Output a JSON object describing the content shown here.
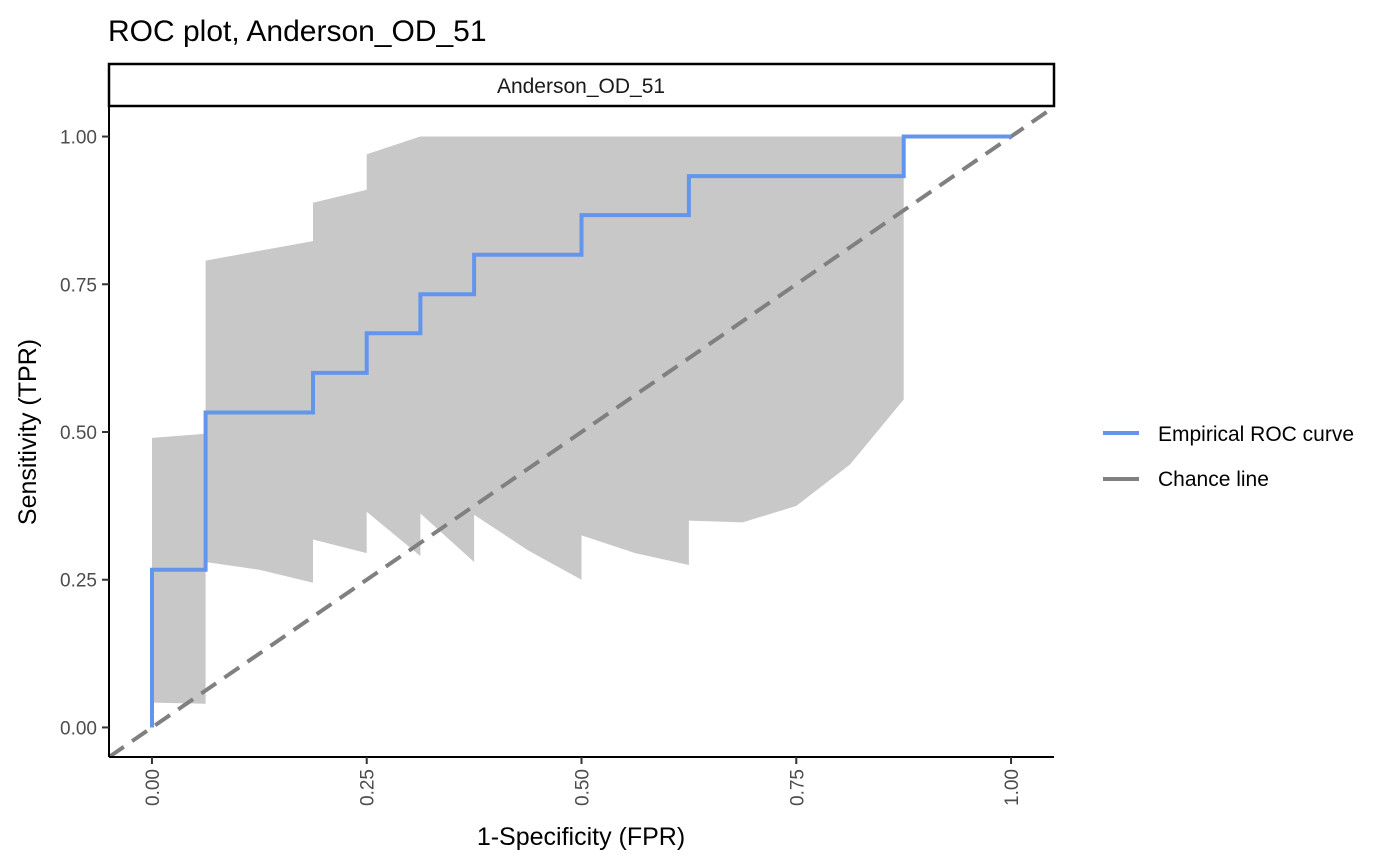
{
  "chart_data": {
    "type": "line",
    "title": "ROC plot, Anderson_OD_51",
    "panel_label": "Anderson_OD_51",
    "xlabel": "1-Specificity (FPR)",
    "ylabel": "Sensitivity (TPR)",
    "xlim": [
      -0.05,
      1.05
    ],
    "ylim": [
      -0.05,
      1.05
    ],
    "x_ticks": [
      0,
      0.25,
      0.5,
      0.75,
      1
    ],
    "x_tick_labels": [
      "0.00",
      "0.25",
      "0.50",
      "0.75",
      "1.00"
    ],
    "y_ticks": [
      0,
      0.25,
      0.5,
      0.75,
      1
    ],
    "y_tick_labels": [
      "0.00",
      "0.25",
      "0.50",
      "0.75",
      "1.00"
    ],
    "grid": false,
    "legend_position": "right",
    "colors": {
      "roc": "#6495ED",
      "chance": "#808080",
      "band": "#C8C8C8"
    },
    "series": [
      {
        "name": "Empirical ROC curve",
        "style": "step",
        "x": [
          0,
          0,
          0.0625,
          0.0625,
          0.1875,
          0.1875,
          0.25,
          0.25,
          0.3125,
          0.3125,
          0.375,
          0.375,
          0.5,
          0.5,
          0.625,
          0.625,
          0.875,
          0.875,
          1.0
        ],
        "y": [
          0,
          0.267,
          0.267,
          0.533,
          0.533,
          0.6,
          0.6,
          0.667,
          0.667,
          0.733,
          0.733,
          0.8,
          0.8,
          0.867,
          0.867,
          0.933,
          0.933,
          1.0,
          1.0
        ]
      },
      {
        "name": "Chance line",
        "style": "dashed",
        "x": [
          -0.05,
          1.05
        ],
        "y": [
          -0.05,
          1.05
        ]
      }
    ],
    "confidence_band": {
      "upper": {
        "x": [
          0,
          0.0625,
          0.0625,
          0.1875,
          0.1875,
          0.25,
          0.25,
          0.3125,
          0.875
        ],
        "y": [
          0.49,
          0.497,
          0.79,
          0.823,
          0.888,
          0.91,
          0.97,
          1.0,
          1.0
        ]
      },
      "lower": {
        "x": [
          0,
          0.0625,
          0.0625,
          0.125,
          0.1875,
          0.1875,
          0.25,
          0.25,
          0.3125,
          0.3125,
          0.375,
          0.375,
          0.4375,
          0.5,
          0.5,
          0.5625,
          0.625,
          0.625,
          0.6875,
          0.75,
          0.8125,
          0.875
        ],
        "y": [
          0.042,
          0.04,
          0.28,
          0.267,
          0.245,
          0.318,
          0.295,
          0.365,
          0.29,
          0.362,
          0.28,
          0.36,
          0.3,
          0.25,
          0.325,
          0.295,
          0.275,
          0.35,
          0.347,
          0.375,
          0.445,
          0.555
        ]
      }
    }
  }
}
